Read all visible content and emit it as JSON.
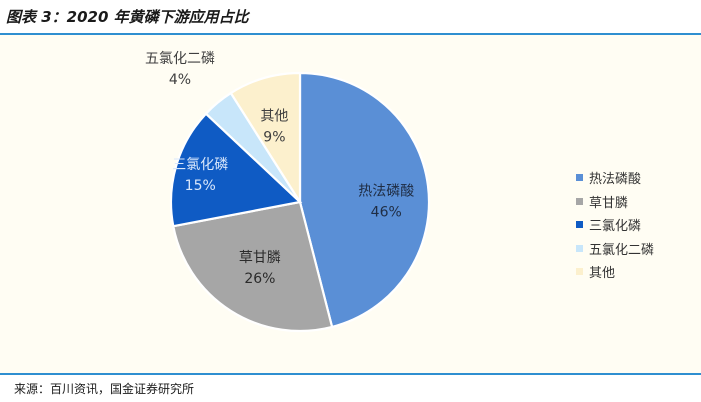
{
  "title": "图表 3：2020 年黄磷下游应用占比",
  "source": "来源：百川资讯，国金证券研究所",
  "chart_data": {
    "type": "pie",
    "categories": [
      "热法磷酸",
      "草甘膦",
      "三氯化磷",
      "五氯化二磷",
      "其他"
    ],
    "values": [
      46,
      26,
      15,
      4,
      9
    ],
    "value_labels": [
      "46%",
      "26%",
      "15%",
      "4%",
      "9%"
    ],
    "colors": [
      "#5a8fd6",
      "#a6a6a6",
      "#0f5bc4",
      "#c8e6fa",
      "#fcf0cd"
    ],
    "start": "12 o'clock",
    "direction": "clockwise",
    "legend_position": "right"
  }
}
